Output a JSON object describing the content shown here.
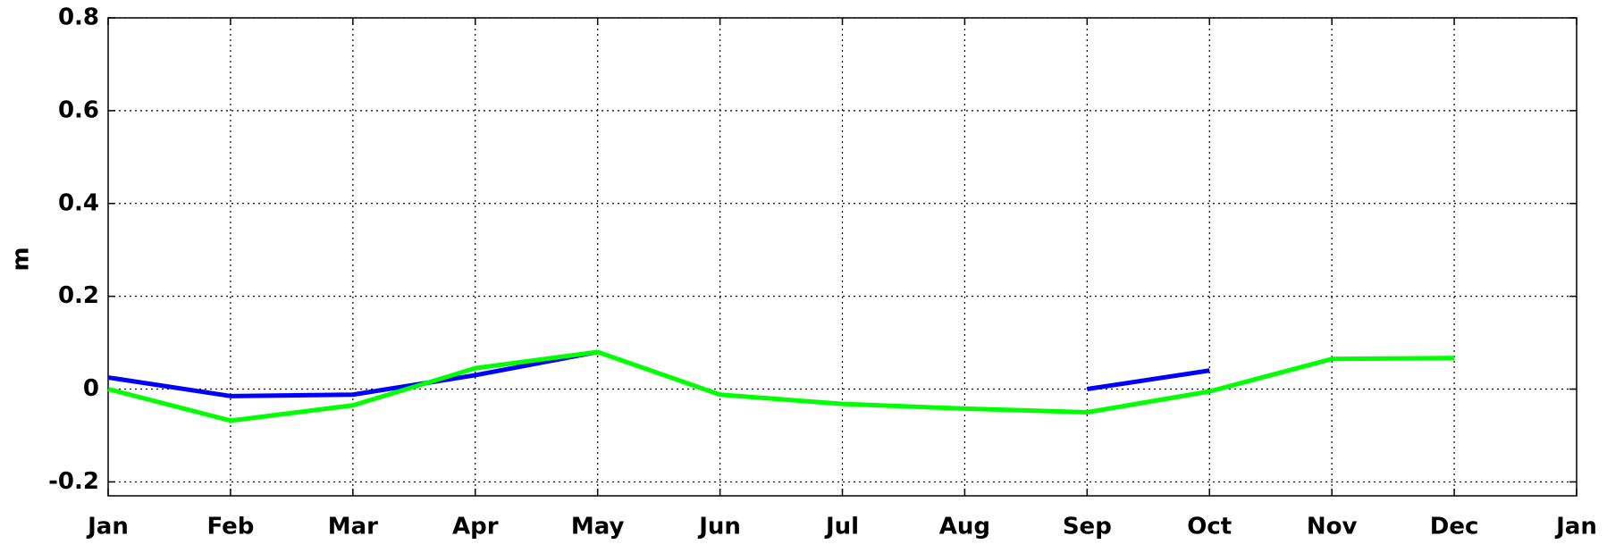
{
  "chart_data": {
    "type": "line",
    "y_label": "m",
    "categories": [
      "Jan",
      "Feb",
      "Mar",
      "Apr",
      "May",
      "Jun",
      "Jul",
      "Aug",
      "Sep",
      "Oct",
      "Nov",
      "Dec",
      "Jan"
    ],
    "series": [
      {
        "color": "#0000ff",
        "values": [
          0.025,
          -0.015,
          -0.012,
          0.03,
          0.08,
          null,
          null,
          null,
          0.0,
          0.04,
          null,
          null,
          null
        ]
      },
      {
        "color": "#00ff00",
        "values": [
          0.0,
          -0.068,
          -0.035,
          0.045,
          0.08,
          -0.012,
          -0.032,
          -0.042,
          -0.05,
          -0.005,
          0.065,
          0.067,
          null
        ]
      }
    ],
    "ylim": [
      -0.23,
      0.8
    ],
    "yticks": [
      -0.2,
      0,
      0.2,
      0.4,
      0.6,
      0.8
    ],
    "grid": true
  }
}
